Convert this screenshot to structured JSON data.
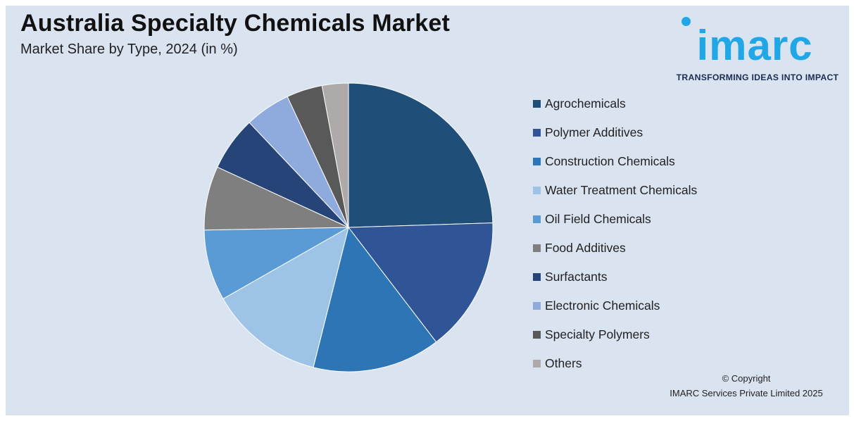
{
  "chart_data": {
    "type": "pie",
    "title": "Australia Specialty Chemicals Market",
    "subtitle": "Market Share by Type, 2024 (in %)",
    "categories": [
      "Agrochemicals",
      "Polymer Additives",
      "Construction Chemicals",
      "Water Treatment Chemicals",
      "Oil Field Chemicals",
      "Food Additives",
      "Surfactants",
      "Electronic Chemicals",
      "Specialty Polymers",
      "Others"
    ],
    "values": [
      25,
      15.4,
      14.6,
      13.1,
      8.1,
      7.3,
      6.2,
      5.2,
      4.1,
      3.0
    ],
    "colors": [
      "#1f4e79",
      "#2f5597",
      "#2e75b6",
      "#9dc3e6",
      "#5b9bd5",
      "#7f7f7f",
      "#264478",
      "#8faadc",
      "#595959",
      "#aeaaaa"
    ],
    "legend_position": "right",
    "start": "12 o'clock, clockwise"
  },
  "brand": {
    "logo_text": "imarc",
    "tagline": "TRANSFORMING IDEAS INTO IMPACT",
    "color": "#21a7e6"
  },
  "footer": {
    "copyright_line1": "© Copyright",
    "copyright_line2": "IMARC Services Private Limited 2025"
  }
}
